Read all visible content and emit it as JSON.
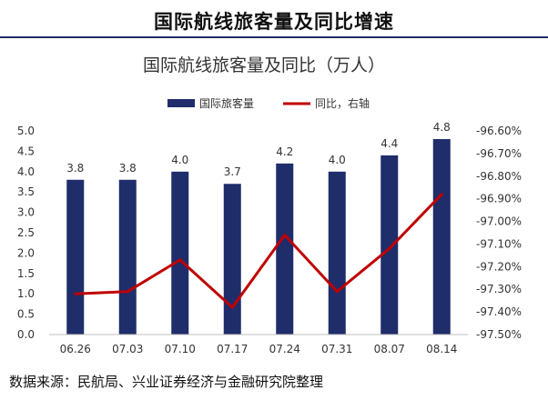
{
  "header": {
    "title": "国际航线旅客量及同比增速"
  },
  "source": "数据来源：民航局、兴业证券经济与金融研究院整理",
  "colors": {
    "bar": "#1f2d6b",
    "line": "#c00000",
    "header_rule": "#1f2d6b"
  },
  "chart_data": {
    "type": "bar+line",
    "title": "国际航线旅客量及同比（万人）",
    "categories": [
      "06.26",
      "07.03",
      "07.10",
      "07.17",
      "07.24",
      "07.31",
      "08.07",
      "08.14"
    ],
    "series": [
      {
        "name": "国际旅客量",
        "type": "bar",
        "axis": "left",
        "values": [
          3.8,
          3.8,
          4.0,
          3.7,
          4.2,
          4.0,
          4.4,
          4.8
        ],
        "labels": [
          "3.8",
          "3.8",
          "4.0",
          "3.7",
          "4.2",
          "4.0",
          "4.4",
          "4.8"
        ]
      },
      {
        "name": "同比，右轴",
        "type": "line",
        "axis": "right",
        "values": [
          -97.32,
          -97.31,
          -97.17,
          -97.38,
          -97.06,
          -97.31,
          -97.12,
          -96.88
        ]
      }
    ],
    "y_left": {
      "min": 0,
      "max": 5.0,
      "step": 0.5,
      "ticks": [
        "0.0",
        "0.5",
        "1.0",
        "1.5",
        "2.0",
        "2.5",
        "3.0",
        "3.5",
        "4.0",
        "4.5",
        "5.0"
      ]
    },
    "y_right": {
      "min": -97.5,
      "max": -96.6,
      "step": 0.1,
      "ticks": [
        "-97.50%",
        "-97.40%",
        "-97.30%",
        "-97.20%",
        "-97.10%",
        "-97.00%",
        "-96.90%",
        "-96.80%",
        "-96.70%",
        "-96.60%"
      ]
    },
    "legend_position": "top",
    "grid": false
  }
}
